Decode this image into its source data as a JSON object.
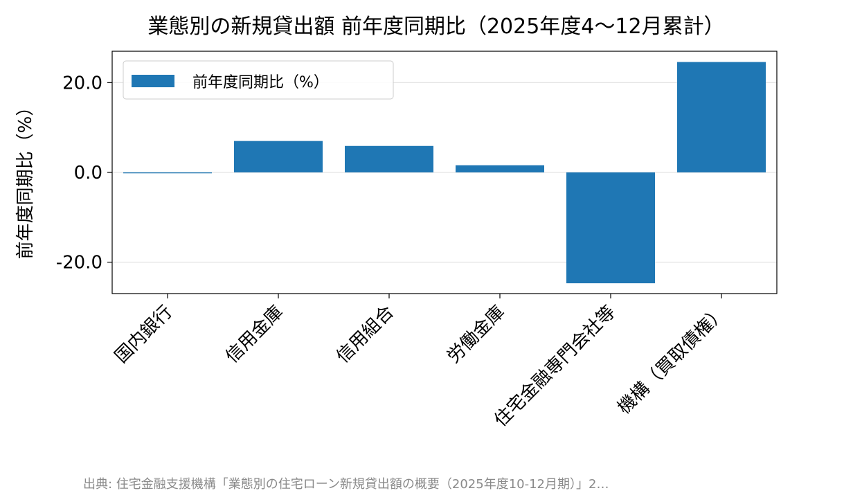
{
  "chart_data": {
    "type": "bar",
    "title": "業態別の新規貸出額 前年度同期比（2025年度4〜12月累計）",
    "ylabel": "前年度同期比（%）",
    "xlabel": "",
    "categories": [
      "国内銀行",
      "信用金庫",
      "信用組合",
      "労働金庫",
      "住宅金融専門会社等",
      "機構（買取債権）"
    ],
    "series": [
      {
        "name": "前年度同期比（%）",
        "values": [
          -0.2,
          7.0,
          5.9,
          1.6,
          -24.7,
          24.6
        ],
        "color": "#1f77b4"
      }
    ],
    "ylim": [
      -27,
      27
    ],
    "yticks": [
      -20.0,
      0.0,
      20.0
    ],
    "ytick_labels": [
      "-20.0",
      "0.0",
      "20.0"
    ],
    "grid": true,
    "legend_position": "upper-left"
  },
  "source_note": "出典: 住宅金融支援機構「業態別の住宅ローン新規貸出額の概要（2025年度10-12月期）」2…"
}
